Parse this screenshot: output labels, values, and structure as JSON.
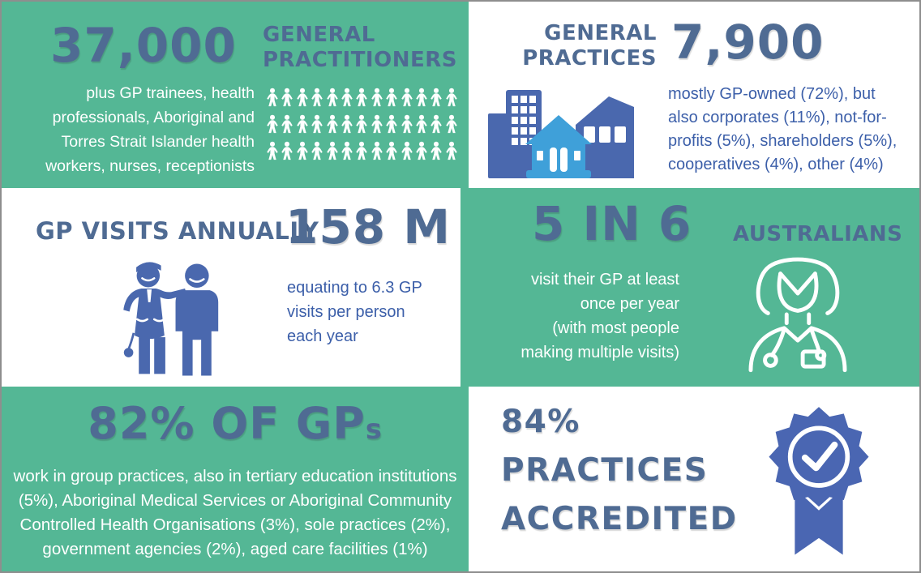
{
  "colors": {
    "green": "#54B795",
    "slate": "#4F6B93",
    "blue-text": "#3C5FA9",
    "icon-blue": "#4A68AE",
    "badge-blue": "#4A66B2",
    "light-blue": "#3FA0D9",
    "white": "#FFFFFF",
    "border": "#8E8E8E"
  },
  "panels": {
    "gps": {
      "stat": "37,000",
      "title_lines": [
        "GENERAL",
        "PRACTITIONERS"
      ],
      "description_lines": [
        "plus GP trainees, health",
        "professionals, Aboriginal and",
        "Torres Strait Islander health",
        "workers, nurses, receptionists"
      ],
      "icon": "people-grid",
      "icon_grid": {
        "rows": 3,
        "per_row": 13
      }
    },
    "practices": {
      "title_lines": [
        "GENERAL",
        "PRACTICES"
      ],
      "stat": "7,900",
      "description_lines": [
        "mostly GP-owned (72%), but",
        "also corporates (11%), not-for-",
        "profits (5%), shareholders (5%),",
        "cooperatives (4%), other (4%)"
      ],
      "icon": "buildings"
    },
    "visits": {
      "title": "GP VISITS ANNUALLY",
      "stat": "158 M",
      "description_lines": [
        "equating to 6.3 GP",
        "visits per person",
        "each year"
      ],
      "icon": "doctor-and-patient"
    },
    "australians": {
      "stat": "5 IN 6",
      "title": "AUSTRALIANS",
      "description_lines": [
        "visit their GP at least",
        "once per year",
        "(with most people",
        "making multiple visits)"
      ],
      "icon": "doctor-outline"
    },
    "group_practice": {
      "stat": "82% OF GP",
      "stat_suffix": "s",
      "description_lines": [
        "work in group practices, also in tertiary education institutions",
        "(5%), Aboriginal Medical Services or Aboriginal Community",
        "Controlled Health Organisations (3%), sole practices (2%),",
        "government agencies (2%),  aged care facilities (1%)"
      ]
    },
    "accredited": {
      "stat": "84%",
      "line2": "PRACTICES",
      "line3": "ACCREDITED",
      "icon": "award-ribbon-badge"
    }
  }
}
